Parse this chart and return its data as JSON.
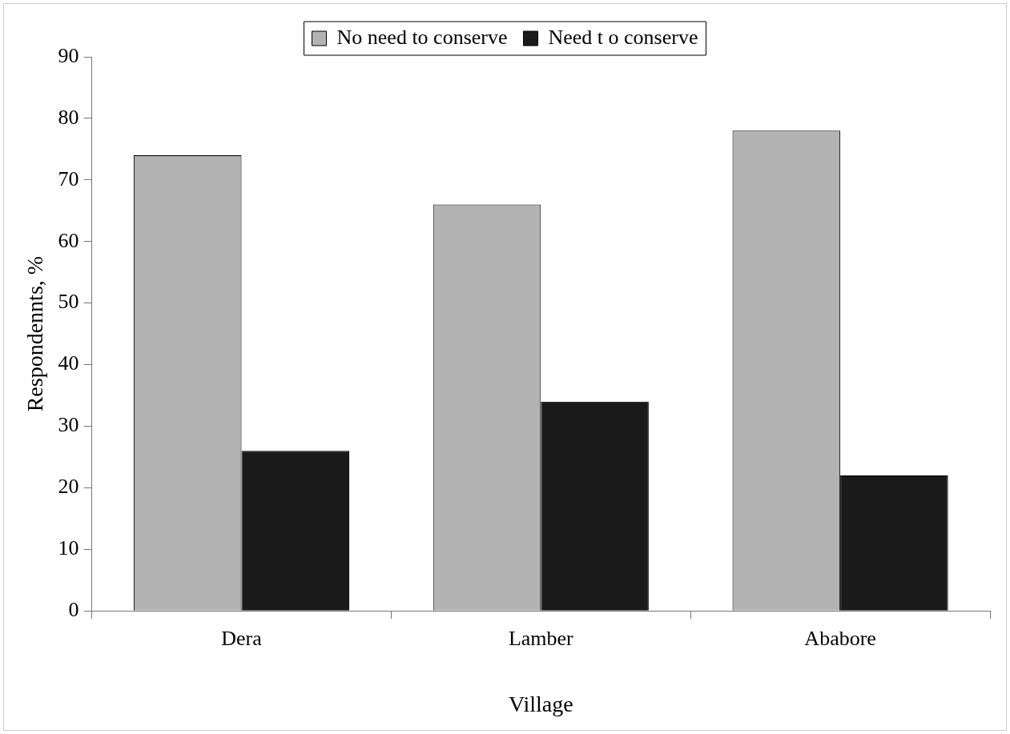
{
  "chart_data": {
    "type": "bar",
    "xlabel": "Village",
    "ylabel": "Respondennts, %",
    "categories": [
      "Dera",
      "Lamber",
      "Ababore"
    ],
    "series": [
      {
        "name": "No need to conserve",
        "color": "#b3b3b3",
        "values": [
          74,
          66,
          78
        ]
      },
      {
        "name": "Need t o conserve",
        "color": "#1a1a1a",
        "values": [
          26,
          34,
          22
        ]
      }
    ],
    "ylim": [
      0,
      90
    ],
    "yticks": [
      0,
      10,
      20,
      30,
      40,
      50,
      60,
      70,
      80,
      90
    ],
    "grid": false,
    "legend": "top"
  }
}
